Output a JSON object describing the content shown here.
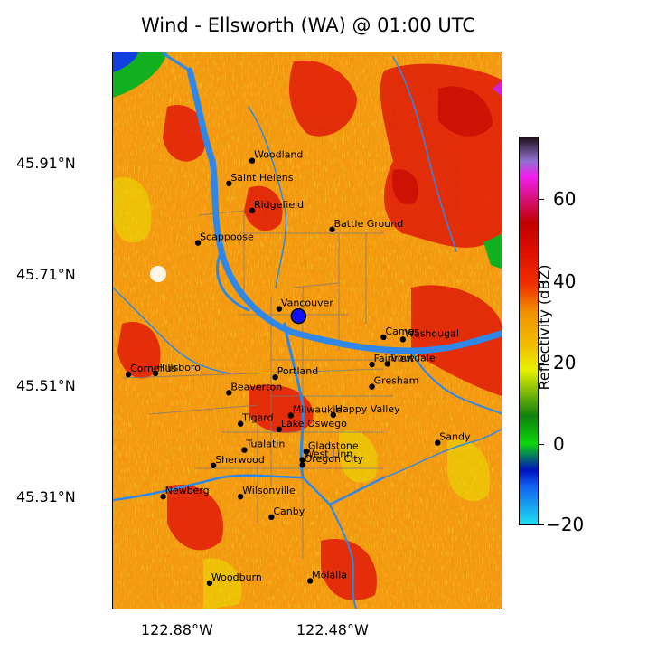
{
  "title": "Wind - Ellsworth (WA) @ 01:00 UTC",
  "map": {
    "lat_labels": [
      "45.91°N",
      "45.71°N",
      "45.51°N",
      "45.31°N"
    ],
    "lon_labels": [
      "122.88°W",
      "122.48°W"
    ],
    "cities": [
      {
        "name": "Woodland",
        "lon": -122.74,
        "lat": 45.905
      },
      {
        "name": "Saint Helens",
        "lon": -122.8,
        "lat": 45.864
      },
      {
        "name": "Ridgefield",
        "lon": -122.74,
        "lat": 45.815
      },
      {
        "name": "Battle Ground",
        "lon": -122.533,
        "lat": 45.781
      },
      {
        "name": "Scappoose",
        "lon": -122.88,
        "lat": 45.757
      },
      {
        "name": "Vancouver",
        "lon": -122.67,
        "lat": 45.638
      },
      {
        "name": "Camas",
        "lon": -122.4,
        "lat": 45.587
      },
      {
        "name": "Washougal",
        "lon": -122.35,
        "lat": 45.583
      },
      {
        "name": "Cornelius",
        "lon": -123.06,
        "lat": 45.52
      },
      {
        "name": "Hillsboro",
        "lon": -122.99,
        "lat": 45.522
      },
      {
        "name": "Fairview",
        "lon": -122.43,
        "lat": 45.538
      },
      {
        "name": "Troutdale",
        "lon": -122.39,
        "lat": 45.539
      },
      {
        "name": "Portland",
        "lon": -122.68,
        "lat": 45.515
      },
      {
        "name": "Beaverton",
        "lon": -122.8,
        "lat": 45.487
      },
      {
        "name": "Gresham",
        "lon": -122.43,
        "lat": 45.498
      },
      {
        "name": "Milwaukie",
        "lon": -122.64,
        "lat": 45.446
      },
      {
        "name": "Happy Valley",
        "lon": -122.53,
        "lat": 45.447
      },
      {
        "name": "Tigard",
        "lon": -122.77,
        "lat": 45.431
      },
      {
        "name": "Lake Oswego",
        "lon": -122.67,
        "lat": 45.421
      },
      {
        "name": "Sandy",
        "lon": -122.26,
        "lat": 45.397
      },
      {
        "name": "Tualatin",
        "lon": -122.76,
        "lat": 45.384
      },
      {
        "name": "Gladstone",
        "lon": -122.6,
        "lat": 45.381
      },
      {
        "name": "West Linn",
        "lon": -122.61,
        "lat": 45.366
      },
      {
        "name": "Oregon City",
        "lon": -122.61,
        "lat": 45.357
      },
      {
        "name": "Sherwood",
        "lon": -122.84,
        "lat": 45.356
      },
      {
        "name": "Wilsonville",
        "lon": -122.77,
        "lat": 45.3
      },
      {
        "name": "Newberg",
        "lon": -122.97,
        "lat": 45.3
      },
      {
        "name": "Canby",
        "lon": -122.69,
        "lat": 45.263
      },
      {
        "name": "Woodburn",
        "lon": -122.85,
        "lat": 45.144
      },
      {
        "name": "Molalla",
        "lon": -122.59,
        "lat": 45.148
      }
    ],
    "radar_site": {
      "lon": -122.62,
      "lat": 45.625
    },
    "colors": {
      "base": "#f39a10",
      "heavy": "#e01a08",
      "core": "#c40000",
      "river": "#2f88e8",
      "low": "#e8e000",
      "green": "#10b020",
      "radar_marker": "#1010ff"
    }
  },
  "colorbar": {
    "label": "Reflectivity (dBZ)",
    "ticks": [
      "60",
      "40",
      "20",
      "0",
      "−20"
    ]
  }
}
